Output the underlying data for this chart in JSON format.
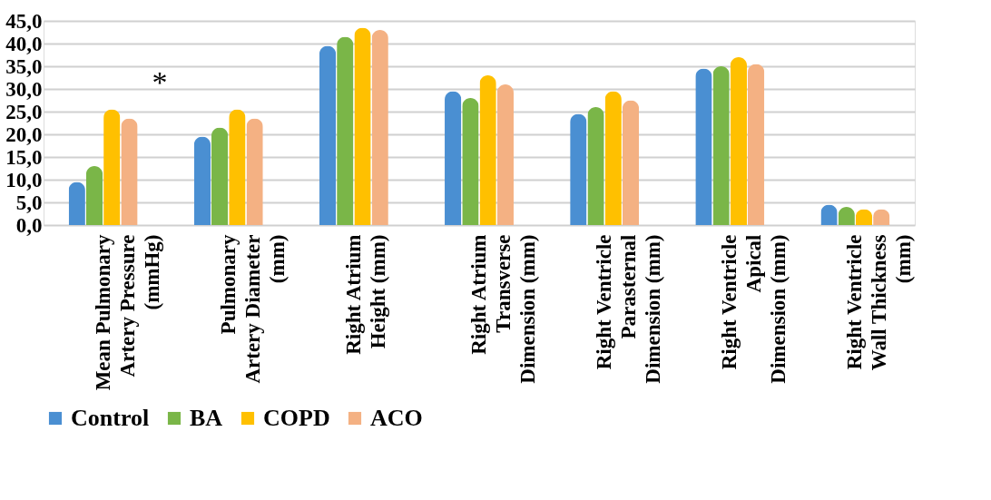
{
  "chart_data": {
    "type": "bar",
    "categories": [
      "Mean Pulmonary\nArtery Pressure\n(mmHg)",
      "Pulmonary\nArtery Diameter\n(mm)",
      "Right Atrium\nHeight (mm)",
      "Right Atrium\nTransverse\nDimension (mm)",
      "Right Ventricle\nParasternal\nDimension (mm)",
      "Right Ventricle\nApical\nDimension (mm)",
      "Right Ventricle\nWall Thickness\n(mm)"
    ],
    "series": [
      {
        "name": "Control",
        "color": "#4a8fd2",
        "values": [
          9.5,
          19.5,
          39.5,
          29.5,
          24.5,
          34.5,
          4.5
        ]
      },
      {
        "name": "BA",
        "color": "#7ab648",
        "values": [
          13,
          21.5,
          41.5,
          28,
          26,
          35,
          4
        ]
      },
      {
        "name": "COPD",
        "color": "#ffc000",
        "values": [
          25.5,
          25.5,
          43.5,
          33,
          29.5,
          37,
          3.5
        ]
      },
      {
        "name": "ACO",
        "color": "#f4b183",
        "values": [
          23.5,
          23.5,
          43,
          31,
          27.5,
          35.5,
          3.5
        ]
      }
    ],
    "ylim": [
      0,
      45
    ],
    "yticks": [
      {
        "value": 0,
        "label": "0,0"
      },
      {
        "value": 5,
        "label": "5,0"
      },
      {
        "value": 10,
        "label": "10,0"
      },
      {
        "value": 15,
        "label": "15,0"
      },
      {
        "value": 20,
        "label": "20,0"
      },
      {
        "value": 25,
        "label": "25,0"
      },
      {
        "value": 30,
        "label": "30,0"
      },
      {
        "value": 35,
        "label": "35,0"
      },
      {
        "value": 40,
        "label": "40,0"
      },
      {
        "value": 45,
        "label": "45,0"
      }
    ],
    "annotations": [
      "*"
    ],
    "grid": "y",
    "legend": "bottom"
  }
}
